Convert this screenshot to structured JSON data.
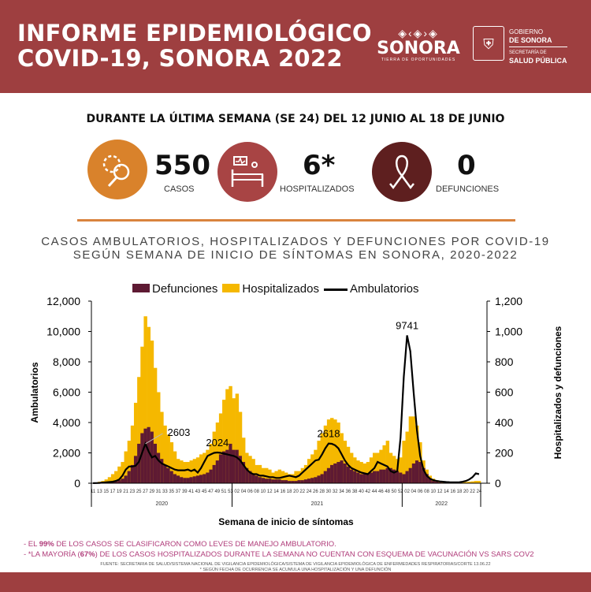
{
  "header": {
    "title_line1": "INFORME EPIDEMIOLÓGICO",
    "title_line2": "COVID-19, SONORA 2022",
    "logo_sonora": "SONORA",
    "logo_sonora_tagline": "TIERRA DE OPORTUNIDADES",
    "gob_line1": "GOBIERNO",
    "gob_line2": "DE SONORA",
    "gob_line3": "SECRETARÍA DE",
    "gob_line4": "SALUD PÚBLICA",
    "bg_color": "#9e3f40"
  },
  "summary": {
    "period": "DURANTE LA ÚLTIMA SEMANA (SE 24) DEL 12 JUNIO AL 18 DE JUNIO",
    "stats": [
      {
        "value": "550",
        "label": "CASOS",
        "icon": "virus-magnifier-icon",
        "color": "#d9822b"
      },
      {
        "value": "6*",
        "label": "HOSPITALIZADOS",
        "icon": "hospital-bed-icon",
        "color": "#a84444"
      },
      {
        "value": "0",
        "label": "DEFUNCIONES",
        "icon": "ribbon-icon",
        "color": "#5e1f1f"
      }
    ]
  },
  "chart_title_line1": "CASOS AMBULATORIOS, HOSPITALIZADOS Y DEFUNCIONES POR COVID-19",
  "chart_title_line2": "SEGÚN SEMANA DE INICIO DE SÍNTOMAS EN SONORA, 2020-2022",
  "chart_data": {
    "type": "bar+line",
    "xlabel": "Semana de inicio de síntomas",
    "ylabel_left": "Ambulatorios",
    "ylabel_right": "Hospitalizados y defunciones",
    "ylim_left": [
      0,
      12000
    ],
    "ylim_right": [
      0,
      1200
    ],
    "yticks_left": [
      "0",
      "2,000",
      "4,000",
      "6,000",
      "8,000",
      "10,000",
      "12,000"
    ],
    "yticks_right": [
      "0",
      "200",
      "400",
      "600",
      "800",
      "1,000",
      "1,200"
    ],
    "legend_position": "top",
    "years": [
      {
        "year": "2020",
        "weeks_from": 11,
        "weeks_to": 53
      },
      {
        "year": "2021",
        "weeks_from": 1,
        "weeks_to": 52
      },
      {
        "year": "2022",
        "weeks_from": 1,
        "weeks_to": 24
      }
    ],
    "series": [
      {
        "name": "Defunciones",
        "axis": "right",
        "kind": "bar",
        "color": "#5e1a33",
        "values": [
          0,
          0,
          1,
          2,
          3,
          5,
          8,
          12,
          20,
          30,
          50,
          80,
          120,
          180,
          260,
          330,
          360,
          370,
          340,
          260,
          200,
          160,
          120,
          100,
          80,
          60,
          50,
          40,
          35,
          35,
          40,
          45,
          50,
          55,
          60,
          70,
          90,
          120,
          150,
          190,
          210,
          220,
          260,
          220,
          220,
          180,
          140,
          100,
          80,
          60,
          50,
          40,
          35,
          30,
          30,
          25,
          25,
          25,
          20,
          20,
          15,
          15,
          15,
          20,
          20,
          25,
          30,
          35,
          40,
          50,
          60,
          80,
          100,
          120,
          130,
          140,
          150,
          130,
          110,
          90,
          80,
          70,
          60,
          60,
          60,
          70,
          80,
          80,
          90,
          90,
          100,
          100,
          90,
          80,
          70,
          60,
          80,
          100,
          130,
          150,
          140,
          100,
          60,
          30,
          15,
          10,
          6,
          4,
          3,
          2,
          2,
          1,
          1,
          1,
          1,
          1,
          1,
          1,
          1
        ]
      },
      {
        "name": "Hospitalizados",
        "axis": "right",
        "kind": "bar",
        "color": "#f5b800",
        "values": [
          2,
          5,
          10,
          15,
          25,
          40,
          60,
          80,
          110,
          140,
          210,
          280,
          380,
          530,
          700,
          900,
          1100,
          1030,
          940,
          760,
          600,
          470,
          380,
          320,
          270,
          210,
          160,
          150,
          140,
          140,
          150,
          160,
          170,
          190,
          200,
          220,
          260,
          340,
          400,
          460,
          550,
          620,
          640,
          560,
          590,
          470,
          300,
          200,
          180,
          160,
          120,
          120,
          100,
          100,
          90,
          70,
          80,
          90,
          80,
          70,
          60,
          60,
          80,
          80,
          100,
          120,
          160,
          190,
          220,
          280,
          330,
          380,
          420,
          430,
          420,
          400,
          330,
          280,
          240,
          200,
          170,
          150,
          140,
          130,
          140,
          170,
          200,
          200,
          220,
          250,
          280,
          200,
          180,
          160,
          170,
          280,
          340,
          440,
          440,
          380,
          270,
          150,
          90,
          50,
          30,
          20,
          15,
          12,
          10,
          8,
          8,
          6,
          6,
          8,
          8,
          10,
          12,
          15,
          15
        ]
      },
      {
        "name": "Ambulatorios",
        "axis": "left",
        "kind": "line",
        "color": "#000000",
        "values": [
          5,
          10,
          20,
          40,
          60,
          80,
          100,
          150,
          250,
          500,
          900,
          1100,
          1100,
          1150,
          1400,
          2000,
          2603,
          2100,
          1700,
          1800,
          1500,
          1300,
          1200,
          1100,
          1000,
          900,
          850,
          850,
          850,
          900,
          800,
          900,
          700,
          1000,
          1400,
          1800,
          1900,
          2000,
          2024,
          2000,
          1950,
          1900,
          1850,
          1800,
          1700,
          1500,
          1200,
          900,
          700,
          600,
          600,
          500,
          500,
          450,
          400,
          400,
          350,
          350,
          400,
          450,
          500,
          450,
          400,
          500,
          700,
          900,
          1100,
          1300,
          1500,
          1550,
          1900,
          2300,
          2618,
          2600,
          2500,
          2300,
          1900,
          1500,
          1200,
          1000,
          900,
          800,
          700,
          650,
          600,
          800,
          1000,
          1400,
          1300,
          1200,
          1100,
          800,
          700,
          800,
          3000,
          7000,
          9741,
          8700,
          6000,
          3500,
          1800,
          900,
          500,
          300,
          200,
          150,
          120,
          100,
          80,
          70,
          60,
          60,
          70,
          100,
          150,
          250,
          400,
          650,
          600
        ]
      }
    ],
    "annotations": [
      "2603",
      "2024",
      "2618",
      "9741"
    ]
  },
  "notes": {
    "line1_pre": "- EL ",
    "line1_bold": "99%",
    "line1_post": " DE LOS CASOS SE CLASIFICARON COMO LEVES DE  MANEJO AMBULATORIO.",
    "line2_pre": "- *LA MAYORÍA (",
    "line2_bold": "67%",
    "line2_post": ")  DE LOS CASOS HOSPITALIZADOS DURANTE LA SEMANA NO CUENTAN CON ESQUEMA DE VACUNACIÓN VS SARS COV2",
    "source": "FUENTE: SECRETARIA DE SALUD/SISTEMA NACIONAL DE VIGILANCIA EPIDEMIOLÓGICA/SISTEMA DE VIGILANCIA EPIDEMIOLÓGICA DE ENFERMEDADES RESPIRATORIAS/CORTE 13.06.22",
    "footnote": "* SEGÚN FECHA DE OCURRENCIA SE ACUMULA UNA HOSPITALIZACIÓN Y UNA DEFUNCIÓN"
  }
}
